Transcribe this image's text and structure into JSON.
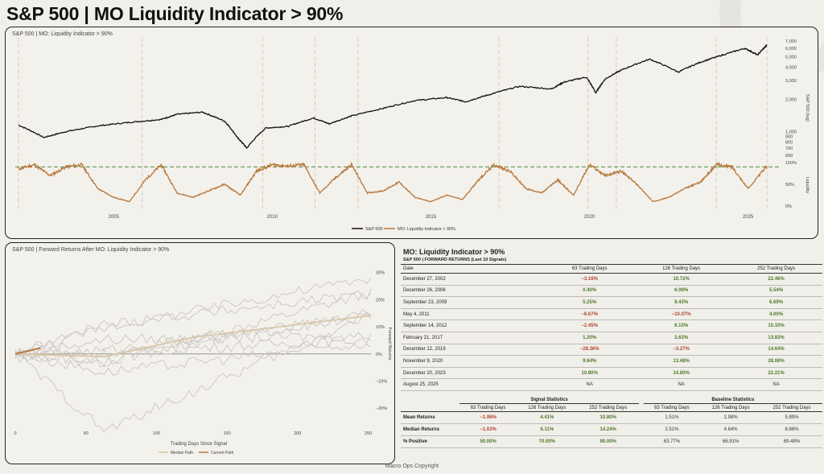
{
  "title": "S&P 500 | MO Liquidity Indicator > 90%",
  "top_panel": {
    "label": "S&P 500 | MO: Liquidity Indicator > 90%",
    "right_axis_label_top": "S&P 500 (log)",
    "right_axis_label_bottom": "Liquidity",
    "legend": [
      "S&P 500",
      "MO: Liquidity Indicator > 90%"
    ]
  },
  "left_panel": {
    "label": "S&P 500 | Forward Returns After MO: Liquidity Indicator > 90%",
    "xlabel": "Trading Days Since Signal",
    "ylabel": "Forward Returns",
    "legend": [
      "Median Path",
      "Current Path"
    ]
  },
  "table": {
    "title": "MO: Liquidity Indicator > 90%",
    "subtitle": "S&P 500 | FORWARD RETURNS (Last 10 Signals)",
    "headers": [
      "Date",
      "63 Trading Days",
      "126 Trading Days",
      "252 Trading Days"
    ],
    "rows": [
      [
        "December 27, 2002",
        "−3.16%",
        "10.72%",
        "22.46%"
      ],
      [
        "December 26, 2006",
        "0.40%",
        "6.08%",
        "5.54%"
      ],
      [
        "September 23, 2009",
        "5.25%",
        "9.43%",
        "6.69%"
      ],
      [
        "May 4, 2011",
        "−6.67%",
        "−10.07%",
        "4.00%"
      ],
      [
        "September 14, 2012",
        "−2.45%",
        "6.15%",
        "15.10%"
      ],
      [
        "February 21, 2017",
        "1.20%",
        "2.63%",
        "13.83%"
      ],
      [
        "December 12, 2019",
        "−28.36%",
        "−3.27%",
        "14.64%"
      ],
      [
        "November 9, 2020",
        "9.64%",
        "13.48%",
        "28.08%"
      ],
      [
        "December 20, 2023",
        "10.80%",
        "14.80%",
        "22.21%"
      ],
      [
        "August 25, 2025",
        "NA",
        "NA",
        "NA"
      ]
    ]
  },
  "stats": {
    "signal_title": "Signal Statistics",
    "baseline_title": "Baseline Statistics",
    "col_headers": [
      "63 Trading Days",
      "126 Trading Days",
      "252 Trading Days"
    ],
    "rows": [
      {
        "label": "Mean Returns",
        "signal": [
          "−1.96%",
          "4.41%",
          "10.80%"
        ],
        "baseline": [
          "1.51%",
          "2.98%",
          "5.89%"
        ]
      },
      {
        "label": "Median Returns",
        "signal": [
          "−1.02%",
          "6.11%",
          "14.24%"
        ],
        "baseline": [
          "2.51%",
          "4.64%",
          "8.88%"
        ]
      },
      {
        "label": "% Positive",
        "signal": [
          "50.00%",
          "70.00%",
          "90.00%"
        ],
        "baseline": [
          "63.77%",
          "66.91%",
          "69.48%"
        ]
      }
    ]
  },
  "copyright": "Macro Ops Copyright",
  "colors": {
    "spx": "#111111",
    "liquidity": "#b8773a",
    "threshold": "#4e8a3a",
    "paths": "#c9c6c1",
    "median": "#d9c6a7",
    "current": "#b8773a"
  },
  "chart_data": [
    {
      "type": "line",
      "title": "S&P 500 | MO: Liquidity Indicator > 90%",
      "ylabel": "S&P 500 (log)",
      "log_scale": true,
      "x_ticks": [
        "2005",
        "2010",
        "2015",
        "2020",
        "2025"
      ],
      "y_ticks": [
        "600",
        "700",
        "800",
        "900",
        "1,000",
        "2,000",
        "3,000",
        "4,000",
        "5,000",
        "6,000",
        "7,000"
      ],
      "series": [
        {
          "name": "S&P 500",
          "x": [
            2002.0,
            2002.8,
            2003.5,
            2004.5,
            2005.5,
            2006.5,
            2007.0,
            2007.8,
            2008.5,
            2008.9,
            2009.2,
            2009.8,
            2010.5,
            2011.3,
            2011.8,
            2012.5,
            2013.5,
            2014.5,
            2015.5,
            2016.1,
            2016.8,
            2017.8,
            2018.8,
            2019.2,
            2019.9,
            2020.2,
            2020.5,
            2021.0,
            2021.9,
            2022.8,
            2023.5,
            2024.2,
            2024.9,
            2025.3,
            2025.6
          ],
          "values": [
            1150,
            880,
            1000,
            1130,
            1220,
            1300,
            1450,
            1520,
            1250,
            880,
            700,
            1080,
            1120,
            1340,
            1180,
            1400,
            1650,
            1950,
            2080,
            1900,
            2200,
            2650,
            2500,
            2900,
            3230,
            2300,
            3100,
            3750,
            4750,
            3600,
            4450,
            5200,
            6000,
            5200,
            6450
          ]
        }
      ]
    },
    {
      "type": "line",
      "ylabel": "Liquidity",
      "y_ticks": [
        "0%",
        "50%",
        "100%"
      ],
      "ylim": [
        0,
        100
      ],
      "threshold": 90,
      "series": [
        {
          "name": "MO: Liquidity Indicator > 90%",
          "x": [
            2002.0,
            2002.5,
            2003.0,
            2003.5,
            2004.0,
            2004.5,
            2005.0,
            2005.5,
            2006.0,
            2006.5,
            2007.0,
            2007.5,
            2008.0,
            2008.5,
            2009.0,
            2009.5,
            2010.0,
            2010.5,
            2011.0,
            2011.5,
            2012.0,
            2012.5,
            2013.0,
            2013.5,
            2014.0,
            2014.5,
            2015.0,
            2015.5,
            2016.0,
            2016.5,
            2017.0,
            2017.5,
            2018.0,
            2018.5,
            2019.0,
            2019.5,
            2020.0,
            2020.5,
            2021.0,
            2021.5,
            2022.0,
            2022.5,
            2023.0,
            2023.5,
            2024.0,
            2024.5,
            2025.0,
            2025.6
          ],
          "values": [
            85,
            95,
            70,
            90,
            95,
            40,
            20,
            10,
            60,
            95,
            30,
            20,
            35,
            50,
            25,
            80,
            95,
            92,
            95,
            30,
            65,
            95,
            30,
            35,
            55,
            20,
            10,
            25,
            15,
            60,
            95,
            80,
            40,
            30,
            60,
            25,
            95,
            70,
            80,
            50,
            10,
            20,
            40,
            55,
            95,
            90,
            40,
            92
          ]
        }
      ]
    },
    {
      "type": "line",
      "title": "S&P 500 | Forward Returns After MO: Liquidity Indicator > 90%",
      "xlabel": "Trading Days Since Signal",
      "ylabel": "Forward Returns",
      "x_ticks": [
        "0",
        "50",
        "100",
        "150",
        "200",
        "250"
      ],
      "y_ticks": [
        "30%",
        "20%",
        "10%",
        "0%",
        "−10%",
        "−20%"
      ],
      "xlim": [
        0,
        252
      ],
      "ylim": [
        -25,
        32
      ],
      "series": [
        {
          "name": "Median Path",
          "x": [
            0,
            63,
            126,
            252
          ],
          "values": [
            0,
            -1.0,
            6.1,
            14.2
          ]
        },
        {
          "name": "Current Path",
          "x": [
            0,
            10,
            18
          ],
          "values": [
            0,
            1.2,
            2.2
          ]
        }
      ]
    }
  ]
}
